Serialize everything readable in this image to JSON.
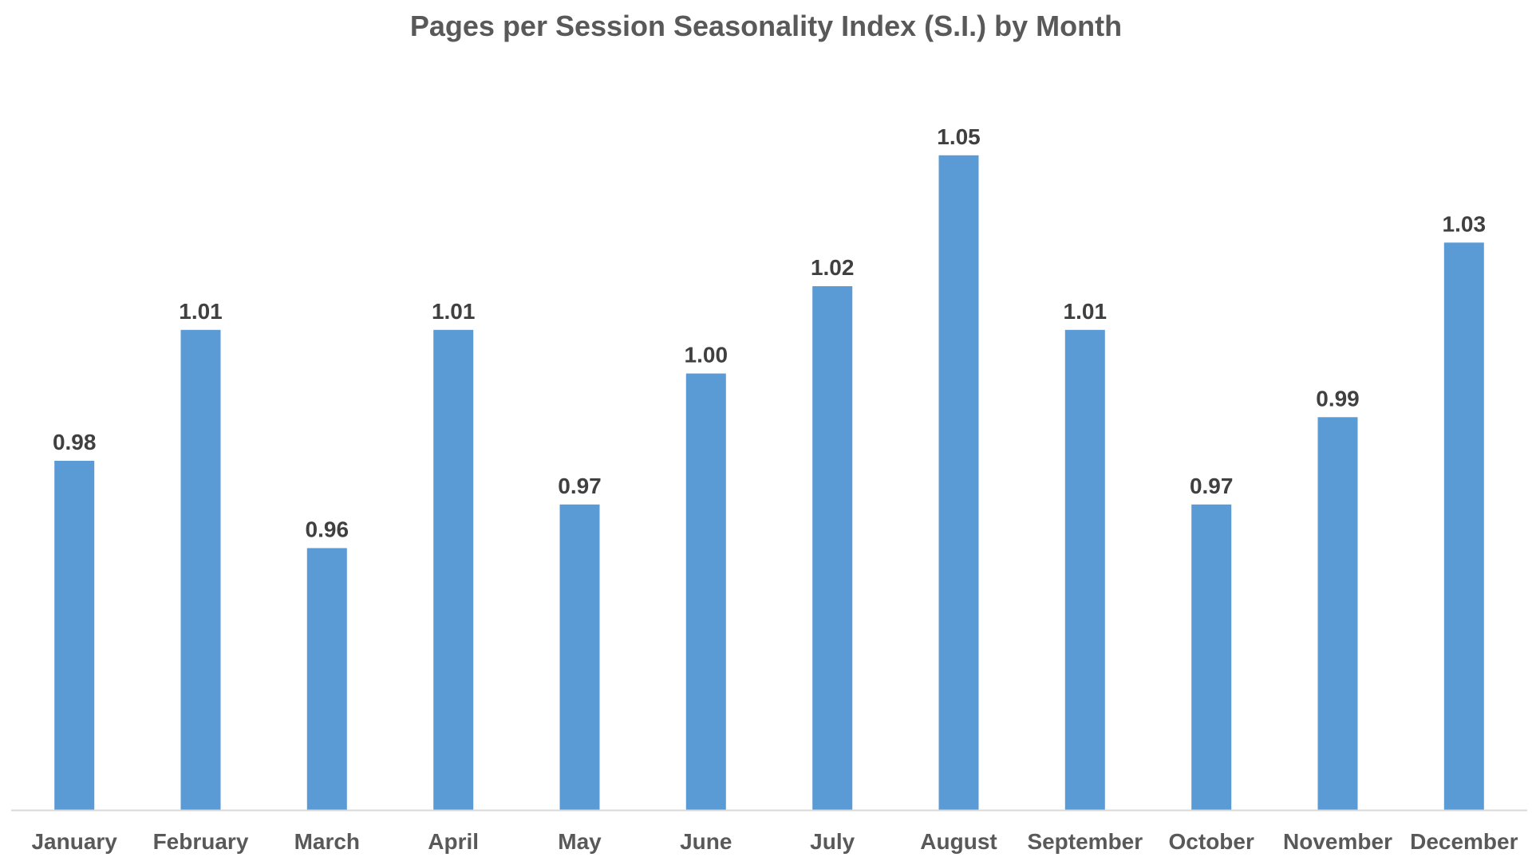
{
  "chart_data": {
    "type": "bar",
    "title": "Pages per Session Seasonality Index (S.I.) by Month",
    "xlabel": "",
    "ylabel": "",
    "categories": [
      "January",
      "February",
      "March",
      "April",
      "May",
      "June",
      "July",
      "August",
      "September",
      "October",
      "November",
      "December"
    ],
    "values": [
      0.98,
      1.01,
      0.96,
      1.01,
      0.97,
      1.0,
      1.02,
      1.05,
      1.01,
      0.97,
      0.99,
      1.03
    ],
    "value_labels": [
      "0.98",
      "1.01",
      "0.96",
      "1.01",
      "0.97",
      "1.00",
      "1.02",
      "1.05",
      "1.01",
      "0.97",
      "0.99",
      "1.03"
    ],
    "ylim": [
      0.9,
      1.06
    ],
    "grid": false,
    "legend": "none",
    "bar_color": "#5B9BD5",
    "axis_color": "#D9D9D9"
  }
}
